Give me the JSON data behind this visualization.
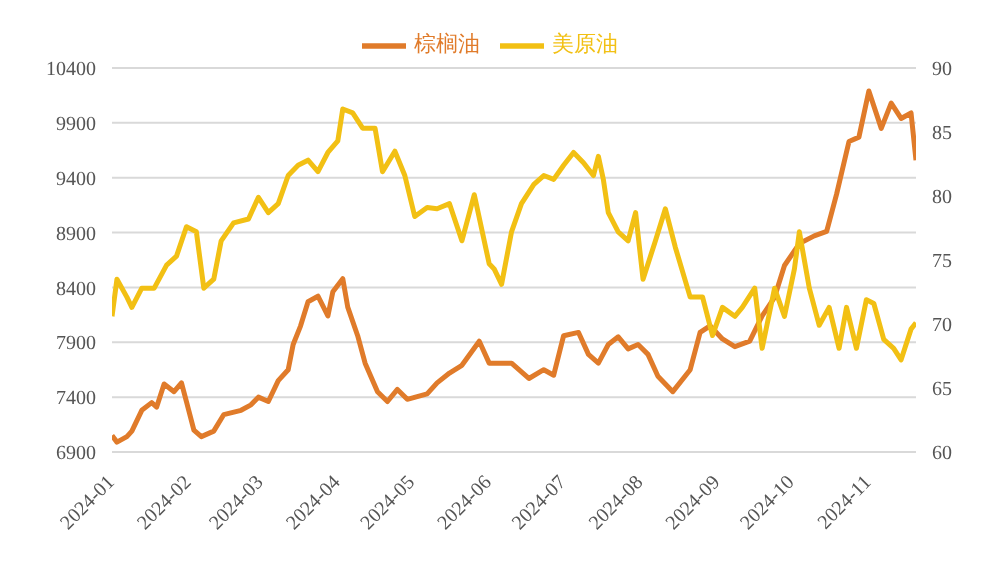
{
  "chart_data": {
    "type": "line",
    "legend": "top",
    "grid": "y",
    "marker": "none",
    "line_style": "solid",
    "xlim": [
      "2024-01-01",
      "2024-11-20"
    ],
    "xticks": [
      "2024-01",
      "2024-02",
      "2024-03",
      "2024-04",
      "2024-05",
      "2024-06",
      "2024-07",
      "2024-08",
      "2024-09",
      "2024-10",
      "2024-11"
    ],
    "ylim": [
      6900,
      10400
    ],
    "yticks": [
      6900,
      7400,
      7900,
      8400,
      8900,
      9400,
      9900,
      10400
    ],
    "y2lim": [
      60,
      90
    ],
    "y2ticks": [
      60,
      65,
      70,
      75,
      80,
      85,
      90
    ],
    "series": [
      {
        "name": "棕榈油",
        "color": "#e07b2a",
        "x": [
          "2024-01-01",
          "2024-01-03",
          "2024-01-07",
          "2024-01-09",
          "2024-01-13",
          "2024-01-17",
          "2024-01-19",
          "2024-01-22",
          "2024-01-26",
          "2024-01-29",
          "2024-01-31",
          "2024-02-03",
          "2024-02-06",
          "2024-02-11",
          "2024-02-15",
          "2024-02-22",
          "2024-02-26",
          "2024-02-29",
          "2024-03-04",
          "2024-03-08",
          "2024-03-12",
          "2024-03-14",
          "2024-03-17",
          "2024-03-20",
          "2024-03-24",
          "2024-03-28",
          "2024-03-30",
          "2024-04-03",
          "2024-04-05",
          "2024-04-09",
          "2024-04-12",
          "2024-04-17",
          "2024-04-21",
          "2024-04-25",
          "2024-04-29",
          "2024-05-07",
          "2024-05-11",
          "2024-05-16",
          "2024-05-21",
          "2024-05-28",
          "2024-06-01",
          "2024-06-05",
          "2024-06-10",
          "2024-06-17",
          "2024-06-23",
          "2024-06-27",
          "2024-07-01",
          "2024-07-07",
          "2024-07-11",
          "2024-07-15",
          "2024-07-19",
          "2024-07-23",
          "2024-07-27",
          "2024-07-31",
          "2024-08-04",
          "2024-08-08",
          "2024-08-14",
          "2024-08-21",
          "2024-08-25",
          "2024-08-29",
          "2024-09-03",
          "2024-09-08",
          "2024-09-14",
          "2024-09-19",
          "2024-09-24",
          "2024-09-28",
          "2024-10-04",
          "2024-10-10",
          "2024-10-15",
          "2024-10-19",
          "2024-10-24",
          "2024-10-28",
          "2024-11-01",
          "2024-11-06",
          "2024-11-10",
          "2024-11-14",
          "2024-11-18",
          "2024-11-20"
        ],
        "values": [
          7050,
          6990,
          7040,
          7090,
          7280,
          7350,
          7310,
          7520,
          7450,
          7530,
          7360,
          7100,
          7040,
          7090,
          7240,
          7280,
          7330,
          7400,
          7360,
          7550,
          7650,
          7880,
          8050,
          8270,
          8320,
          8140,
          8360,
          8480,
          8220,
          7960,
          7710,
          7450,
          7360,
          7470,
          7380,
          7430,
          7530,
          7620,
          7690,
          7910,
          7710,
          7710,
          7710,
          7570,
          7650,
          7600,
          7960,
          7990,
          7790,
          7710,
          7880,
          7950,
          7840,
          7880,
          7790,
          7590,
          7450,
          7650,
          7990,
          8050,
          7930,
          7860,
          7910,
          8140,
          8310,
          8600,
          8800,
          8870,
          8910,
          9250,
          9730,
          9770,
          10190,
          9850,
          10080,
          9940,
          9990,
          9560
        ]
      },
      {
        "name": "美原油",
        "color": "#f2c014",
        "axis": "y2",
        "x": [
          "2024-01-01",
          "2024-01-03",
          "2024-01-07",
          "2024-01-09",
          "2024-01-13",
          "2024-01-18",
          "2024-01-23",
          "2024-01-27",
          "2024-01-31",
          "2024-02-04",
          "2024-02-07",
          "2024-02-11",
          "2024-02-14",
          "2024-02-19",
          "2024-02-25",
          "2024-02-29",
          "2024-03-04",
          "2024-03-08",
          "2024-03-12",
          "2024-03-16",
          "2024-03-20",
          "2024-03-24",
          "2024-03-28",
          "2024-04-01",
          "2024-04-03",
          "2024-04-07",
          "2024-04-11",
          "2024-04-16",
          "2024-04-19",
          "2024-04-24",
          "2024-04-28",
          "2024-05-02",
          "2024-05-07",
          "2024-05-11",
          "2024-05-16",
          "2024-05-21",
          "2024-05-26",
          "2024-06-01",
          "2024-06-03",
          "2024-06-06",
          "2024-06-10",
          "2024-06-14",
          "2024-06-19",
          "2024-06-23",
          "2024-06-27",
          "2024-07-01",
          "2024-07-05",
          "2024-07-09",
          "2024-07-13",
          "2024-07-15",
          "2024-07-17",
          "2024-07-19",
          "2024-07-23",
          "2024-07-27",
          "2024-07-30",
          "2024-08-02",
          "2024-08-07",
          "2024-08-11",
          "2024-08-15",
          "2024-08-21",
          "2024-08-26",
          "2024-08-30",
          "2024-09-03",
          "2024-09-08",
          "2024-09-11",
          "2024-09-16",
          "2024-09-19",
          "2024-09-24",
          "2024-09-28",
          "2024-10-02",
          "2024-10-04",
          "2024-10-08",
          "2024-10-12",
          "2024-10-16",
          "2024-10-20",
          "2024-10-23",
          "2024-10-27",
          "2024-10-31",
          "2024-11-03",
          "2024-11-07",
          "2024-11-11",
          "2024-11-14",
          "2024-11-18",
          "2024-11-20"
        ],
        "values": [
          70.6,
          73.5,
          72.1,
          71.3,
          72.8,
          72.8,
          74.6,
          75.3,
          77.6,
          77.2,
          72.8,
          73.5,
          76.5,
          77.9,
          78.2,
          79.9,
          78.7,
          79.4,
          81.6,
          82.4,
          82.8,
          81.9,
          83.4,
          84.3,
          86.8,
          86.5,
          85.3,
          85.3,
          81.9,
          83.5,
          81.6,
          78.4,
          79.1,
          79.0,
          79.4,
          76.5,
          80.1,
          74.7,
          74.3,
          73.1,
          77.2,
          79.4,
          80.9,
          81.6,
          81.3,
          82.4,
          83.4,
          82.6,
          81.6,
          83.1,
          81.3,
          78.7,
          77.2,
          76.5,
          78.7,
          73.5,
          76.5,
          79.0,
          76.0,
          72.1,
          72.1,
          69.1,
          71.3,
          70.6,
          71.3,
          72.8,
          68.1,
          72.8,
          70.6,
          74.3,
          77.2,
          72.8,
          69.9,
          71.3,
          68.1,
          71.3,
          68.1,
          71.9,
          71.6,
          68.8,
          68.1,
          67.2,
          69.6,
          70.1
        ]
      }
    ]
  }
}
